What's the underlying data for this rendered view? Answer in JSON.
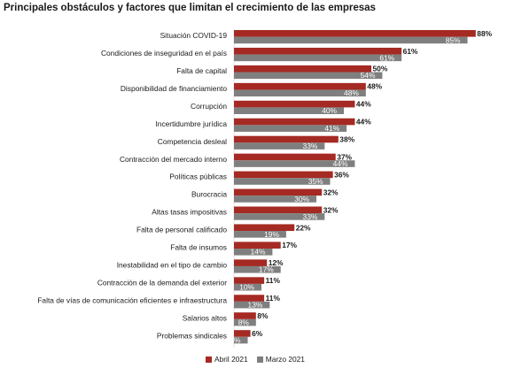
{
  "title": "Principales obstáculos y factores que limitan el crecimiento de las empresas",
  "colors": {
    "abril": "#a52a23",
    "marzo": "#7f7f7f"
  },
  "chart_data": {
    "type": "bar",
    "orientation": "horizontal",
    "title": "Principales obstáculos y factores que limitan el crecimiento de las empresas",
    "categories": [
      "Situación COVID-19",
      "Condiciones de inseguridad en el país",
      "Falta de capital",
      "Disponibilidad de financiamiento",
      "Corrupción",
      "Incertidumbre jurídica",
      "Competencia desleal",
      "Contracción del mercado interno",
      "Políticas públicas",
      "Burocracia",
      "Altas tasas impositivas",
      "Falta de personal calificado",
      "Falta de insumos",
      "Inestabilidad en el tipo de cambio",
      "Contracción de la demanda del exterior",
      "Falta de vías de comunicación eficientes e infraestructura",
      "Salarios altos",
      "Problemas sindicales"
    ],
    "series": [
      {
        "name": "Abril 2021",
        "values": [
          88,
          61,
          50,
          48,
          44,
          44,
          38,
          37,
          36,
          32,
          32,
          22,
          17,
          12,
          11,
          11,
          8,
          6
        ]
      },
      {
        "name": "Marzo 2021",
        "values": [
          85,
          61,
          54,
          48,
          40,
          41,
          33,
          44,
          35,
          30,
          33,
          19,
          14,
          17,
          10,
          13,
          8,
          5
        ]
      }
    ],
    "value_suffix": "%",
    "xlim": [
      0,
      100
    ],
    "grid": false,
    "legend_position": "bottom"
  }
}
